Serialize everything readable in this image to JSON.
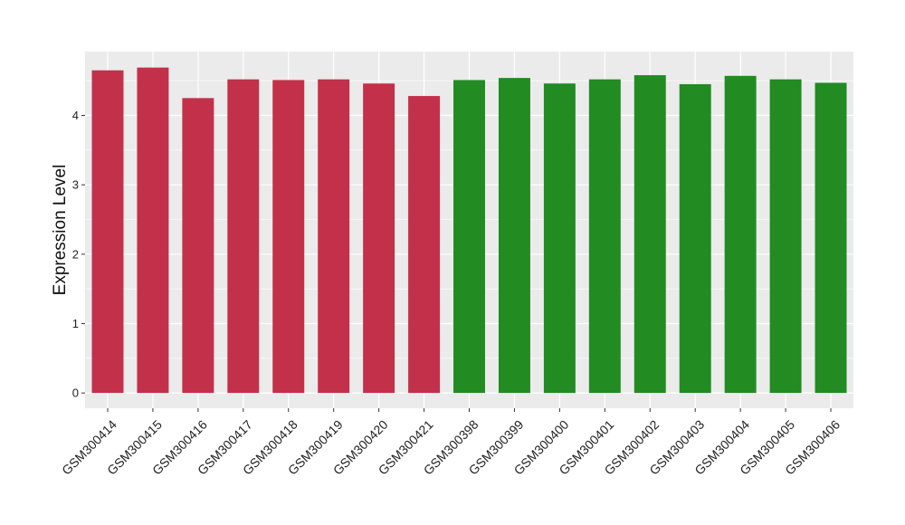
{
  "chart_data": {
    "type": "bar",
    "title": "",
    "xlabel": "",
    "ylabel": "Expression Level",
    "ylim": [
      -0.22,
      4.92
    ],
    "yticks": [
      0,
      1,
      2,
      3,
      4
    ],
    "grid": true,
    "legend": "none",
    "panel_background": "#ebebeb",
    "grid_color": "#ffffff",
    "categories": [
      "GSM300414",
      "GSM300415",
      "GSM300416",
      "GSM300417",
      "GSM300418",
      "GSM300419",
      "GSM300420",
      "GSM300421",
      "GSM300398",
      "GSM300399",
      "GSM300400",
      "GSM300401",
      "GSM300402",
      "GSM300403",
      "GSM300404",
      "GSM300405",
      "GSM300406"
    ],
    "values": [
      4.65,
      4.69,
      4.25,
      4.52,
      4.51,
      4.52,
      4.46,
      4.28,
      4.51,
      4.54,
      4.46,
      4.52,
      4.58,
      4.45,
      4.57,
      4.52,
      4.47
    ],
    "bar_colors": [
      "#c3304a",
      "#c3304a",
      "#c3304a",
      "#c3304a",
      "#c3304a",
      "#c3304a",
      "#c3304a",
      "#c3304a",
      "#228b22",
      "#228b22",
      "#228b22",
      "#228b22",
      "#228b22",
      "#228b22",
      "#228b22",
      "#228b22",
      "#228b22"
    ]
  }
}
